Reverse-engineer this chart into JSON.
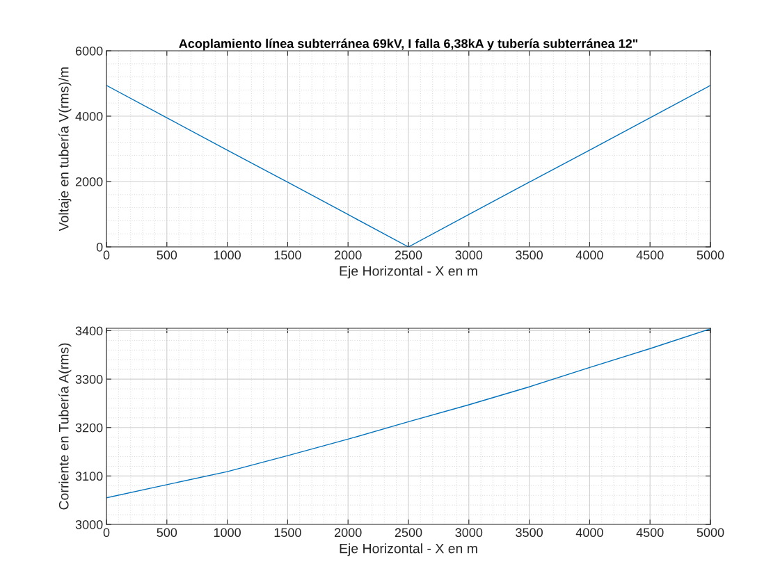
{
  "chart_data": [
    {
      "type": "line",
      "title": "Acoplamiento línea subterránea 69kV, I falla 6,38kA y tubería subterránea 12\"",
      "xlabel": "Eje Horizontal - X en m",
      "ylabel": "Voltaje en tubería V(rms)/m",
      "x": [
        0,
        500,
        1000,
        1500,
        2000,
        2500,
        3000,
        3500,
        4000,
        4500,
        5000
      ],
      "series": [
        {
          "color": "#0072bd",
          "values": [
            4940,
            3950,
            2960,
            1980,
            990,
            0,
            990,
            1980,
            2960,
            3950,
            4940
          ]
        }
      ],
      "xlim": [
        0,
        5000
      ],
      "xticks": [
        0,
        500,
        1000,
        1500,
        2000,
        2500,
        3000,
        3500,
        4000,
        4500,
        5000
      ],
      "ylim": [
        0,
        6000
      ],
      "yticks": [
        0,
        2000,
        4000,
        6000
      ],
      "grid": true,
      "line_style": "solid"
    },
    {
      "type": "line",
      "xlabel": "Eje Horizontal - X en m",
      "ylabel": "Corriente en Tubería A(rms)",
      "x": [
        0,
        500,
        1000,
        1500,
        2000,
        2500,
        3000,
        3500,
        4000,
        4500,
        5000
      ],
      "series": [
        {
          "color": "#0072bd",
          "values": [
            3055,
            3082,
            3109,
            3142,
            3176,
            3212,
            3247,
            3284,
            3324,
            3363,
            3404
          ]
        }
      ],
      "xlim": [
        0,
        5000
      ],
      "xticks": [
        0,
        500,
        1000,
        1500,
        2000,
        2500,
        3000,
        3500,
        4000,
        4500,
        5000
      ],
      "ylim": [
        3000,
        3405
      ],
      "yticks": [
        3000,
        3100,
        3200,
        3300,
        3400
      ],
      "grid": true,
      "line_style": "solid"
    }
  ]
}
